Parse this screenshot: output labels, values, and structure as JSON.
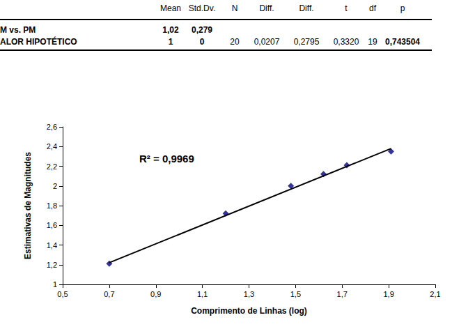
{
  "table": {
    "columns": [
      "Mean",
      "Std.Dv.",
      "N",
      "Diff.",
      "Diff.",
      "t",
      "df",
      "p"
    ],
    "rows": [
      {
        "label": "M vs. PM",
        "cells": [
          "1,02",
          "0,279"
        ]
      },
      {
        "label": "ALOR  HIPOTÉTICO",
        "cells": [
          1,
          0,
          20,
          "0,0207",
          "0,2795",
          "0,3320",
          19,
          "0,743504"
        ]
      }
    ]
  },
  "chart_data": {
    "type": "scatter",
    "xlabel": "Comprimento de Linhas (log)",
    "ylabel": "Estimativas de Magnitudes",
    "annotations": [
      "R² = 0,9969"
    ],
    "xlim": [
      0.5,
      2.1
    ],
    "xticks": [
      {
        "value": 0.5,
        "label": "0,5"
      },
      {
        "value": 0.7,
        "label": "0,7"
      },
      {
        "value": 0.9,
        "label": "0,9"
      },
      {
        "value": 1.1,
        "label": "1,1"
      },
      {
        "value": 1.3,
        "label": "1,3"
      },
      {
        "value": 1.5,
        "label": "1,5"
      },
      {
        "value": 1.7,
        "label": "1,7"
      },
      {
        "value": 1.9,
        "label": "1,9"
      },
      {
        "value": 2.1,
        "label": "2,1"
      }
    ],
    "ylim": [
      1,
      2.6
    ],
    "yticks": [
      1,
      {
        "value": 1.2,
        "label": "1,2"
      },
      {
        "value": 1.4,
        "label": "1,4"
      },
      {
        "value": 1.6,
        "label": "1,6"
      },
      {
        "value": 1.8,
        "label": "1,8"
      },
      2,
      {
        "value": 2.2,
        "label": "2,2"
      },
      {
        "value": 2.4,
        "label": "2,4"
      },
      {
        "value": 2.6,
        "label": "2,6"
      }
    ],
    "grid": false,
    "series": [
      {
        "type": "scatter",
        "marker": "diamond",
        "color": "#000080",
        "x": [
          0.7,
          1.2,
          1.48,
          1.62,
          1.72,
          1.91
        ],
        "values": [
          1.21,
          1.72,
          2.0,
          2.12,
          2.21,
          2.35
        ]
      },
      {
        "type": "line",
        "marker": "none",
        "color": "#000000",
        "x": [
          0.7,
          1.91
        ],
        "values": [
          1.22,
          2.38
        ]
      }
    ]
  }
}
